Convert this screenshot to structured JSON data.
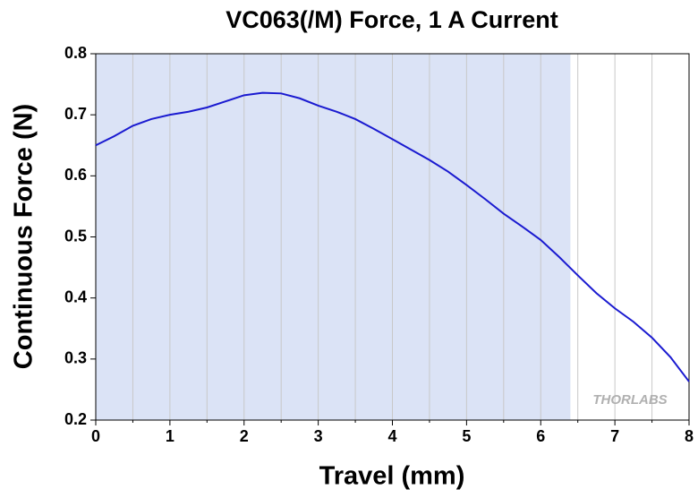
{
  "chart_data": {
    "type": "line",
    "title": "VC063(/M) Force, 1 A Current",
    "x_label": "Travel (mm)",
    "y_label": "Continuous Force (N)",
    "x": [
      0,
      0.25,
      0.5,
      0.75,
      1,
      1.25,
      1.5,
      1.75,
      2,
      2.25,
      2.5,
      2.75,
      3,
      3.25,
      3.5,
      3.75,
      4,
      4.25,
      4.5,
      4.75,
      5,
      5.25,
      5.5,
      5.75,
      6,
      6.25,
      6.5,
      6.75,
      7,
      7.25,
      7.5,
      7.75,
      8
    ],
    "series": [
      {
        "name": "Force",
        "color": "#1a1ad0",
        "values": [
          0.65,
          0.665,
          0.682,
          0.693,
          0.7,
          0.705,
          0.712,
          0.722,
          0.732,
          0.736,
          0.735,
          0.727,
          0.715,
          0.705,
          0.693,
          0.677,
          0.66,
          0.643,
          0.626,
          0.607,
          0.585,
          0.562,
          0.538,
          0.517,
          0.495,
          0.467,
          0.437,
          0.408,
          0.383,
          0.361,
          0.335,
          0.303,
          0.263
        ]
      }
    ],
    "xlim": [
      0,
      8
    ],
    "ylim": [
      0.2,
      0.8
    ],
    "xticks": [
      0,
      1,
      2,
      3,
      4,
      5,
      6,
      7,
      8
    ],
    "x_minor_ticks": [
      0.5,
      1.5,
      2.5,
      3.5,
      4.5,
      5.5,
      6.5,
      7.5
    ],
    "yticks": [
      0.2,
      0.3,
      0.4,
      0.5,
      0.6,
      0.7,
      0.8
    ],
    "grid": true,
    "shaded_region": {
      "xlim": [
        0,
        6.4
      ],
      "color": "#dbe3f6"
    },
    "watermark": "THORLABS"
  }
}
